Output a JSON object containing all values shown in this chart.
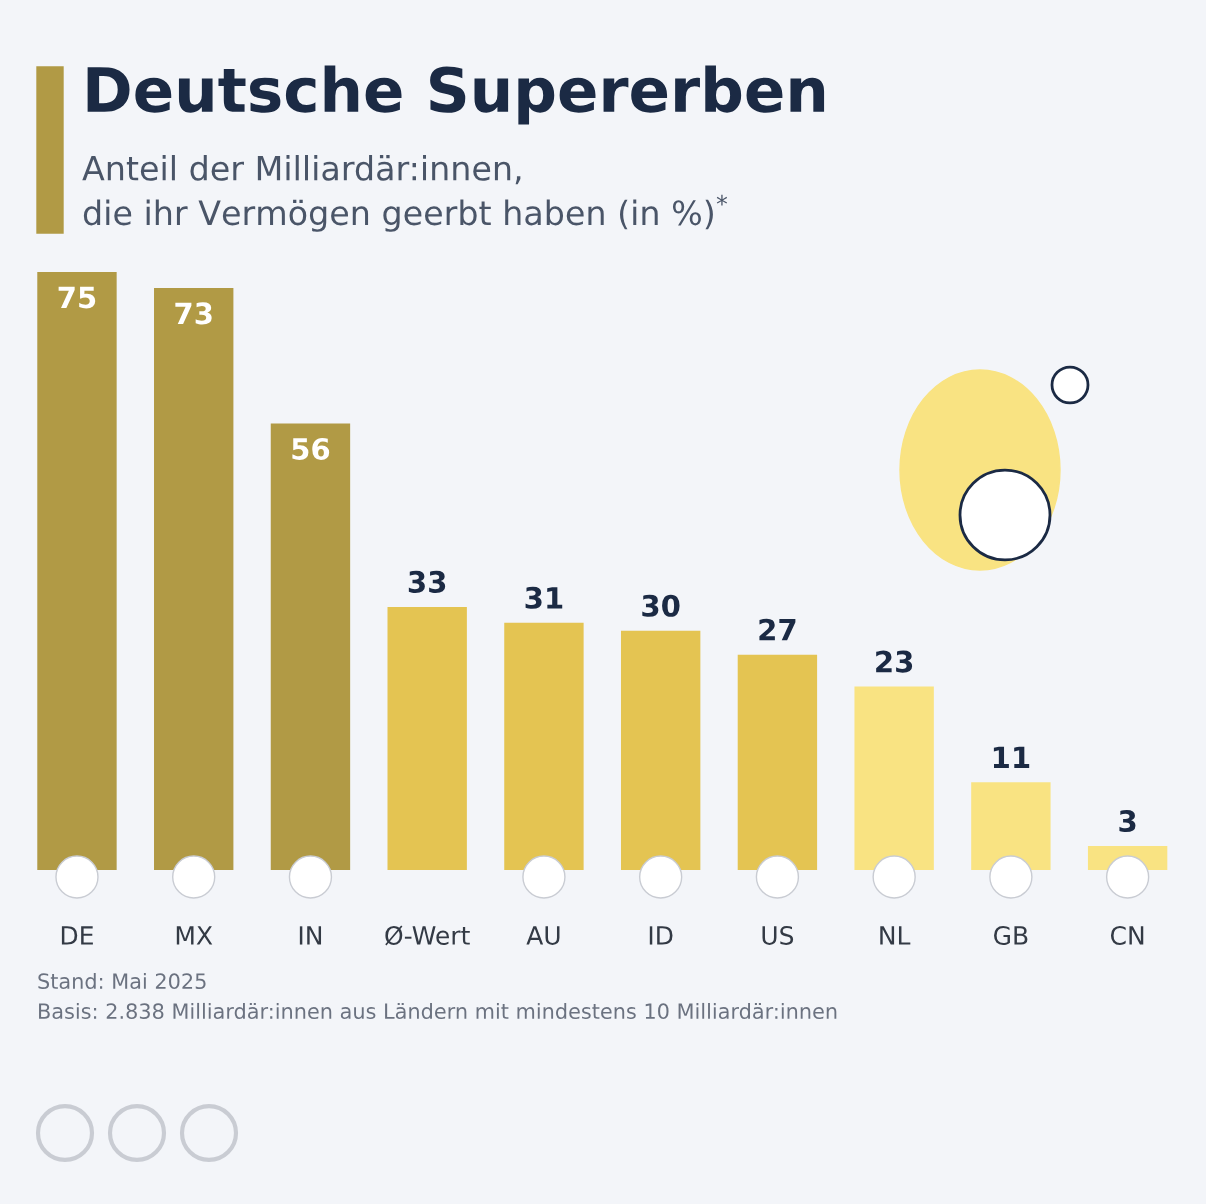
{
  "chart_data": {
    "type": "bar",
    "title": "Deutsche Supererben",
    "subtitle": "Anteil der Milliardär:innen,\ndie ihr Vermögen geerbt haben (in %)$^{*}$",
    "categories": [
      "DE",
      "MX",
      "IN",
      "Ø-Wert",
      "AU",
      "ID",
      "US",
      "NL",
      "GB",
      "CN"
    ],
    "values": [
      75,
      73,
      56,
      33,
      31,
      30,
      27,
      23,
      11,
      3
    ],
    "colors": [
      "#b19a45",
      "#b19a45",
      "#b19a45",
      "#e4c452",
      "#e4c452",
      "#e4c452",
      "#e4c452",
      "#f9e382",
      "#f9e382",
      "#f9e382"
    ],
    "data_labels": true,
    "annotations": [
      "Stand: Mai 2025",
      "Basis: 2.838 Milliardär:innen aus Ländern mit mindestens 10 Milliardär:innen"
    ]
  }
}
